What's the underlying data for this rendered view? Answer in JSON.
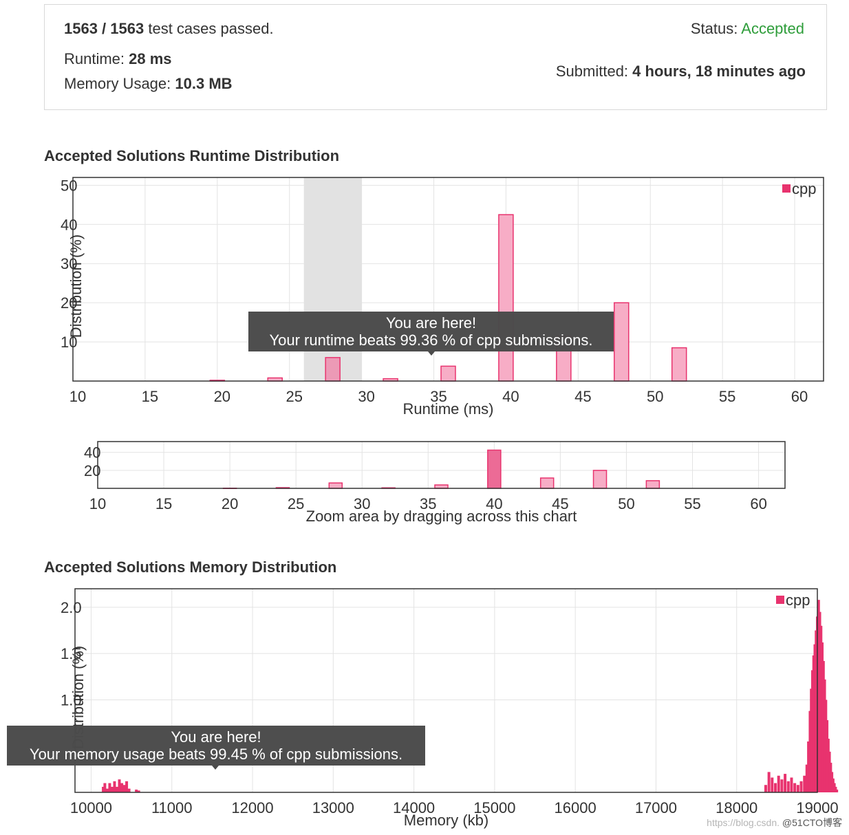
{
  "summary": {
    "cases_passed": "1563 / 1563",
    "cases_suffix": " test cases passed.",
    "runtime_label": "Runtime: ",
    "runtime_value": "28 ms",
    "memory_label": "Memory Usage: ",
    "memory_value": "10.3 MB",
    "status_label": "Status: ",
    "status_value": "Accepted",
    "submitted_label": "Submitted: ",
    "submitted_value": "4 hours, 18 minutes ago"
  },
  "runtime_section": {
    "title": "Accepted Solutions Runtime Distribution"
  },
  "memory_section": {
    "title": "Accepted Solutions Memory Distribution"
  },
  "colors": {
    "accent": "#e8336e",
    "bar_fill": "#f7adc6",
    "highlight": "#e2e2e2",
    "tooltip_bg": "#4a4a4a",
    "accepted": "#2e9d3a"
  },
  "chart_data": [
    {
      "type": "bar",
      "name": "runtime-main",
      "xlabel": "Runtime (ms)",
      "ylabel": "Distribution (%)",
      "xlim": [
        10,
        62
      ],
      "ylim": [
        0,
        52
      ],
      "xticks": [
        10,
        15,
        20,
        25,
        30,
        35,
        40,
        45,
        50,
        55,
        60
      ],
      "yticks": [
        10,
        20,
        30,
        40,
        50
      ],
      "highlight_range": [
        26,
        30
      ],
      "legend": "top-right",
      "grid": true,
      "series": [
        {
          "name": "cpp",
          "color": "#e8336e",
          "x": [
            20,
            24,
            28,
            32,
            36,
            40,
            44,
            48,
            52
          ],
          "values": [
            0.2,
            0.8,
            6.0,
            0.6,
            3.8,
            42.5,
            11.5,
            20.0,
            8.5
          ]
        }
      ],
      "tooltip": {
        "line1": "You are here!",
        "line2": "Your runtime beats 99.36 % of cpp submissions."
      }
    },
    {
      "type": "bar",
      "name": "runtime-navigator",
      "xlabel": "Zoom area by dragging across this chart",
      "xlim": [
        10,
        62
      ],
      "ylim": [
        0,
        52
      ],
      "xticks": [
        10,
        15,
        20,
        25,
        30,
        35,
        40,
        45,
        50,
        55,
        60
      ],
      "yticks": [
        20,
        40
      ],
      "grid": true,
      "series": [
        {
          "name": "cpp",
          "color": "#e8336e",
          "x": [
            20,
            24,
            28,
            32,
            36,
            40,
            44,
            48,
            52
          ],
          "values": [
            0.2,
            0.8,
            6.0,
            0.6,
            3.8,
            42.5,
            11.5,
            20.0,
            8.5
          ]
        }
      ]
    },
    {
      "type": "bar",
      "name": "memory-main",
      "xlabel": "Memory (kb)",
      "ylabel": "Distribution (%)",
      "xlim": [
        9800,
        19000
      ],
      "ylim": [
        0,
        2.2
      ],
      "xticks": [
        10000,
        11000,
        12000,
        13000,
        14000,
        15000,
        16000,
        17000,
        18000,
        19000
      ],
      "yticks": [
        1.0,
        1.5,
        2.0
      ],
      "legend": "top-right",
      "grid": true,
      "series": [
        {
          "name": "cpp",
          "color": "#e8336e",
          "x": [
            10150,
            10170,
            10200,
            10230,
            10260,
            10290,
            10320,
            10350,
            10380,
            10410,
            10440,
            10470,
            10560,
            10590,
            18360,
            18400,
            18440,
            18480,
            18520,
            18560,
            18600,
            18640,
            18680,
            18720,
            18760,
            18800,
            18840,
            18870,
            18890,
            18910,
            18925,
            18940,
            18955,
            18970,
            18985,
            19000,
            19015,
            19030,
            19045,
            19060,
            19075,
            19090,
            19105,
            19120,
            19135,
            19150,
            19165,
            19180,
            19195,
            19210,
            19225,
            19240
          ],
          "values": [
            0.06,
            0.1,
            0.04,
            0.1,
            0.06,
            0.12,
            0.06,
            0.14,
            0.1,
            0.08,
            0.12,
            0.04,
            0.03,
            0.02,
            0.08,
            0.22,
            0.16,
            0.1,
            0.18,
            0.14,
            0.2,
            0.12,
            0.16,
            0.1,
            0.08,
            0.12,
            0.18,
            0.3,
            0.55,
            0.88,
            1.12,
            1.32,
            1.48,
            1.6,
            1.75,
            1.9,
            2.08,
            1.95,
            1.8,
            1.62,
            1.42,
            1.22,
            1.0,
            0.78,
            0.58,
            0.44,
            0.32,
            0.22,
            0.15,
            0.1,
            0.06,
            0.03
          ]
        }
      ],
      "tooltip": {
        "line1": "You are here!",
        "line2": "Your memory usage beats 99.45 % of cpp submissions."
      }
    }
  ],
  "watermark": {
    "url": "https://blog.csdn.",
    "brand": "@51CTO博客"
  }
}
